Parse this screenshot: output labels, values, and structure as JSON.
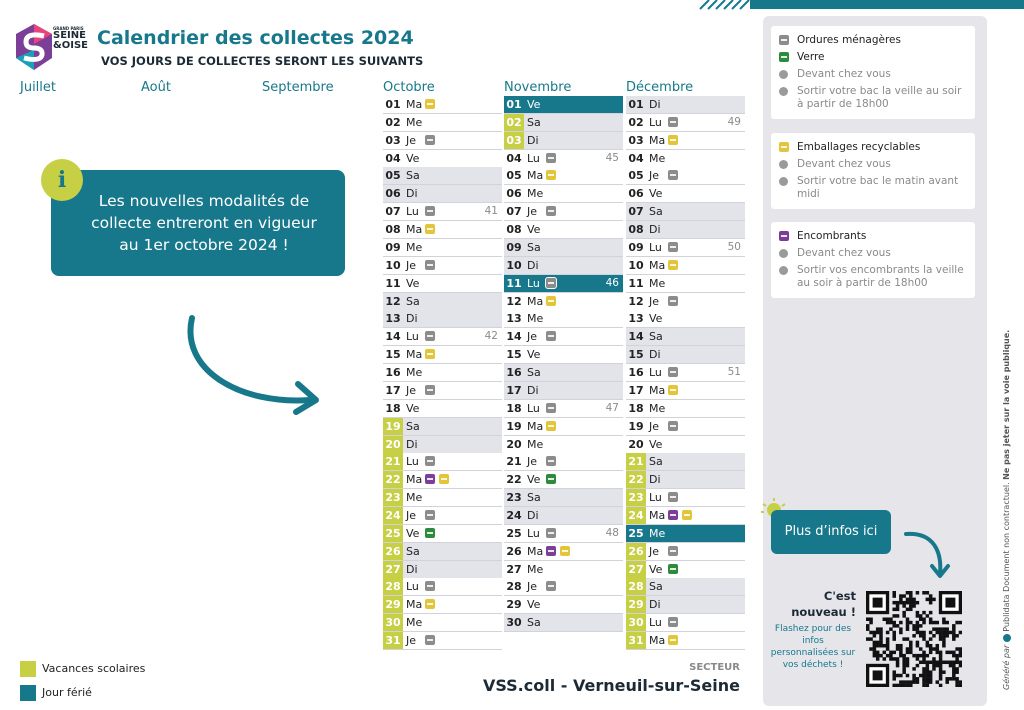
{
  "header": {
    "logo": [
      "GRAND PARIS",
      "SEINE",
      "&OISE"
    ],
    "title": "Calendrier des collectes 2024",
    "subtitle": "VOS JOURS DE COLLECTES SERONT LES SUIVANTS"
  },
  "months": [
    {
      "name": "Juillet",
      "days": []
    },
    {
      "name": "Août",
      "days": []
    },
    {
      "name": "Septembre",
      "days": []
    },
    {
      "name": "Octobre",
      "days": [
        {
          "d": "01",
          "w": "Ma",
          "i": [
            "emb"
          ]
        },
        {
          "d": "02",
          "w": "Me"
        },
        {
          "d": "03",
          "w": "Je",
          "i": [
            "om"
          ]
        },
        {
          "d": "04",
          "w": "Ve"
        },
        {
          "d": "05",
          "w": "Sa",
          "we": true
        },
        {
          "d": "06",
          "w": "Di",
          "we": true
        },
        {
          "d": "07",
          "w": "Lu",
          "i": [
            "om"
          ],
          "k": "41"
        },
        {
          "d": "08",
          "w": "Ma",
          "i": [
            "emb"
          ]
        },
        {
          "d": "09",
          "w": "Me"
        },
        {
          "d": "10",
          "w": "Je",
          "i": [
            "om"
          ]
        },
        {
          "d": "11",
          "w": "Ve"
        },
        {
          "d": "12",
          "w": "Sa",
          "we": true
        },
        {
          "d": "13",
          "w": "Di",
          "we": true
        },
        {
          "d": "14",
          "w": "Lu",
          "i": [
            "om"
          ],
          "k": "42"
        },
        {
          "d": "15",
          "w": "Ma",
          "i": [
            "emb"
          ]
        },
        {
          "d": "16",
          "w": "Me"
        },
        {
          "d": "17",
          "w": "Je",
          "i": [
            "om"
          ]
        },
        {
          "d": "18",
          "w": "Ve"
        },
        {
          "d": "19",
          "w": "Sa",
          "we": true,
          "h": "vac"
        },
        {
          "d": "20",
          "w": "Di",
          "we": true,
          "h": "vac"
        },
        {
          "d": "21",
          "w": "Lu",
          "i": [
            "om"
          ],
          "h": "vac"
        },
        {
          "d": "22",
          "w": "Ma",
          "i": [
            "enc",
            "emb"
          ],
          "h": "vac"
        },
        {
          "d": "23",
          "w": "Me",
          "h": "vac"
        },
        {
          "d": "24",
          "w": "Je",
          "i": [
            "om"
          ],
          "h": "vac"
        },
        {
          "d": "25",
          "w": "Ve",
          "i": [
            "verre"
          ],
          "h": "vac"
        },
        {
          "d": "26",
          "w": "Sa",
          "we": true,
          "h": "vac"
        },
        {
          "d": "27",
          "w": "Di",
          "we": true,
          "h": "vac"
        },
        {
          "d": "28",
          "w": "Lu",
          "i": [
            "om"
          ],
          "h": "vac"
        },
        {
          "d": "29",
          "w": "Ma",
          "i": [
            "emb"
          ],
          "h": "vac"
        },
        {
          "d": "30",
          "w": "Me",
          "h": "vac"
        },
        {
          "d": "31",
          "w": "Je",
          "i": [
            "om"
          ],
          "h": "vac"
        }
      ]
    },
    {
      "name": "Novembre",
      "days": [
        {
          "d": "01",
          "w": "Ve",
          "h": "ferie"
        },
        {
          "d": "02",
          "w": "Sa",
          "we": true,
          "h": "vac"
        },
        {
          "d": "03",
          "w": "Di",
          "we": true,
          "h": "vac"
        },
        {
          "d": "04",
          "w": "Lu",
          "i": [
            "om"
          ],
          "k": "45"
        },
        {
          "d": "05",
          "w": "Ma",
          "i": [
            "emb"
          ]
        },
        {
          "d": "06",
          "w": "Me"
        },
        {
          "d": "07",
          "w": "Je",
          "i": [
            "om"
          ]
        },
        {
          "d": "08",
          "w": "Ve"
        },
        {
          "d": "09",
          "w": "Sa",
          "we": true
        },
        {
          "d": "10",
          "w": "Di",
          "we": true
        },
        {
          "d": "11",
          "w": "Lu",
          "i": [
            "om"
          ],
          "k": "46",
          "h": "ferie"
        },
        {
          "d": "12",
          "w": "Ma",
          "i": [
            "emb"
          ]
        },
        {
          "d": "13",
          "w": "Me"
        },
        {
          "d": "14",
          "w": "Je",
          "i": [
            "om"
          ]
        },
        {
          "d": "15",
          "w": "Ve"
        },
        {
          "d": "16",
          "w": "Sa",
          "we": true
        },
        {
          "d": "17",
          "w": "Di",
          "we": true
        },
        {
          "d": "18",
          "w": "Lu",
          "i": [
            "om"
          ],
          "k": "47"
        },
        {
          "d": "19",
          "w": "Ma",
          "i": [
            "emb"
          ]
        },
        {
          "d": "20",
          "w": "Me"
        },
        {
          "d": "21",
          "w": "Je",
          "i": [
            "om"
          ]
        },
        {
          "d": "22",
          "w": "Ve",
          "i": [
            "verre"
          ]
        },
        {
          "d": "23",
          "w": "Sa",
          "we": true
        },
        {
          "d": "24",
          "w": "Di",
          "we": true
        },
        {
          "d": "25",
          "w": "Lu",
          "i": [
            "om"
          ],
          "k": "48"
        },
        {
          "d": "26",
          "w": "Ma",
          "i": [
            "enc",
            "emb"
          ]
        },
        {
          "d": "27",
          "w": "Me"
        },
        {
          "d": "28",
          "w": "Je",
          "i": [
            "om"
          ]
        },
        {
          "d": "29",
          "w": "Ve"
        },
        {
          "d": "30",
          "w": "Sa",
          "we": true
        }
      ]
    },
    {
      "name": "Décembre",
      "days": [
        {
          "d": "01",
          "w": "Di",
          "we": true
        },
        {
          "d": "02",
          "w": "Lu",
          "i": [
            "om"
          ],
          "k": "49"
        },
        {
          "d": "03",
          "w": "Ma",
          "i": [
            "emb"
          ]
        },
        {
          "d": "04",
          "w": "Me"
        },
        {
          "d": "05",
          "w": "Je",
          "i": [
            "om"
          ]
        },
        {
          "d": "06",
          "w": "Ve"
        },
        {
          "d": "07",
          "w": "Sa",
          "we": true
        },
        {
          "d": "08",
          "w": "Di",
          "we": true
        },
        {
          "d": "09",
          "w": "Lu",
          "i": [
            "om"
          ],
          "k": "50"
        },
        {
          "d": "10",
          "w": "Ma",
          "i": [
            "emb"
          ]
        },
        {
          "d": "11",
          "w": "Me"
        },
        {
          "d": "12",
          "w": "Je",
          "i": [
            "om"
          ]
        },
        {
          "d": "13",
          "w": "Ve"
        },
        {
          "d": "14",
          "w": "Sa",
          "we": true
        },
        {
          "d": "15",
          "w": "Di",
          "we": true
        },
        {
          "d": "16",
          "w": "Lu",
          "i": [
            "om"
          ],
          "k": "51"
        },
        {
          "d": "17",
          "w": "Ma",
          "i": [
            "emb"
          ]
        },
        {
          "d": "18",
          "w": "Me"
        },
        {
          "d": "19",
          "w": "Je",
          "i": [
            "om"
          ]
        },
        {
          "d": "20",
          "w": "Ve"
        },
        {
          "d": "21",
          "w": "Sa",
          "we": true,
          "h": "vac"
        },
        {
          "d": "22",
          "w": "Di",
          "we": true,
          "h": "vac"
        },
        {
          "d": "23",
          "w": "Lu",
          "i": [
            "om"
          ],
          "h": "vac"
        },
        {
          "d": "24",
          "w": "Ma",
          "i": [
            "enc",
            "emb"
          ],
          "h": "vac"
        },
        {
          "d": "25",
          "w": "Me",
          "h": "ferie"
        },
        {
          "d": "26",
          "w": "Je",
          "i": [
            "om"
          ],
          "h": "vac"
        },
        {
          "d": "27",
          "w": "Ve",
          "i": [
            "verre"
          ],
          "h": "vac"
        },
        {
          "d": "28",
          "w": "Sa",
          "we": true,
          "h": "vac"
        },
        {
          "d": "29",
          "w": "Di",
          "we": true,
          "h": "vac"
        },
        {
          "d": "30",
          "w": "Lu",
          "i": [
            "om"
          ],
          "h": "vac"
        },
        {
          "d": "31",
          "w": "Ma",
          "i": [
            "emb"
          ],
          "h": "vac"
        }
      ]
    }
  ],
  "notice": "Les nouvelles modalités de collecte entreront en vigueur au 1er octobre 2024 !",
  "legend": [
    {
      "color": "vac",
      "label": "Vacances scolaires"
    },
    {
      "color": "ferie",
      "label": "Jour férié"
    }
  ],
  "sector": {
    "label": "SECTEUR",
    "name": "VSS.coll - Verneuil-sur-Seine"
  },
  "cards": [
    {
      "types": [
        {
          "icon": "om",
          "label": "Ordures ménagères"
        },
        {
          "icon": "verre",
          "label": "Verre"
        }
      ],
      "infos": [
        "Devant chez vous",
        "Sortir votre bac la veille au soir à partir de 18h00"
      ]
    },
    {
      "types": [
        {
          "icon": "emb",
          "label": "Emballages recyclables"
        }
      ],
      "infos": [
        "Devant chez vous",
        "Sortir votre bac le matin avant midi"
      ]
    },
    {
      "types": [
        {
          "icon": "enc",
          "label": "Encombrants"
        }
      ],
      "infos": [
        "Devant chez vous",
        "Sortir vos encombrants la veille au soir à partir de 18h00"
      ]
    }
  ],
  "more_button": "Plus d’infos ici",
  "qr": {
    "title": "C'est nouveau !",
    "text": "Flashez pour des infos personnalisées sur vos déchets !"
  },
  "footer_side": [
    "Généré par",
    "Publidata",
    "Document non contractuel.",
    "Ne pas jeter sur la voie publique."
  ]
}
